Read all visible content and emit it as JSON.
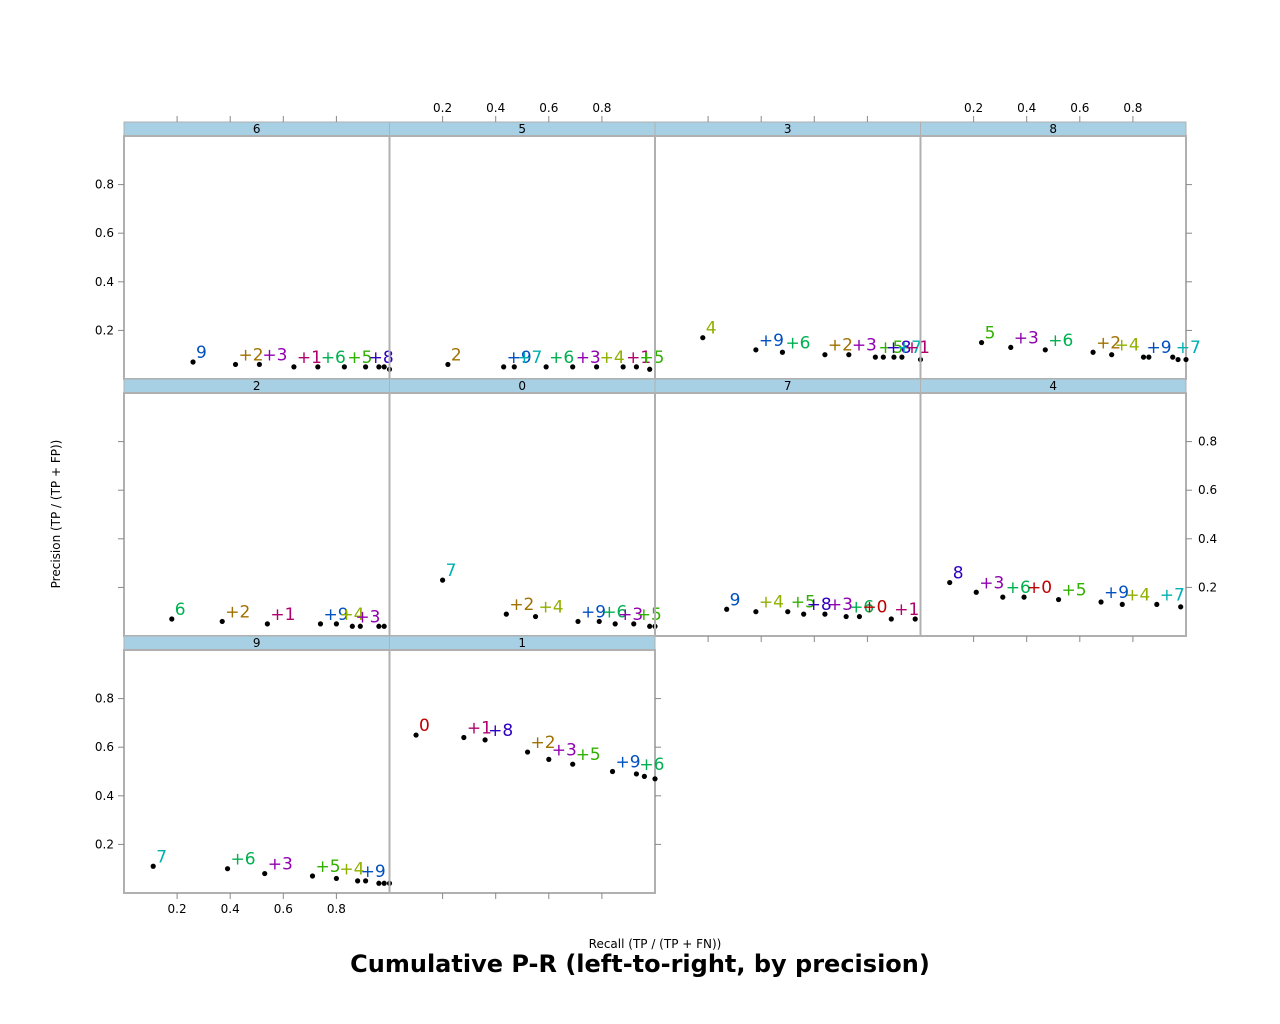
{
  "chart_data": {
    "type": "scatter",
    "title": "Cumulative P-R (left-to-right, by precision)",
    "xlabel": "Recall (TP / (TP + FN))",
    "ylabel": "Precision (TP / (TP + FP))",
    "xlim": [
      0.0,
      1.0
    ],
    "ylim": [
      0.0,
      1.0
    ],
    "x_ticks": [
      0.2,
      0.4,
      0.6,
      0.8
    ],
    "y_ticks": [
      0.2,
      0.4,
      0.6,
      0.8
    ],
    "label_colors": {
      "0": "#c00000",
      "1": "#b0006e",
      "2": "#a07000",
      "3": "#9000b0",
      "4": "#90b000",
      "5": "#30b000",
      "6": "#00b050",
      "7": "#00b0b0",
      "8": "#3000c0",
      "9": "#0050c0"
    },
    "panels": [
      {
        "strip": "6",
        "points": [
          {
            "x": 0.26,
            "y": 0.07,
            "label": "9"
          },
          {
            "x": 0.42,
            "y": 0.06,
            "label": "+2"
          },
          {
            "x": 0.51,
            "y": 0.06,
            "label": "+3"
          },
          {
            "x": 0.64,
            "y": 0.05,
            "label": "+1"
          },
          {
            "x": 0.73,
            "y": 0.05,
            "label": "+6"
          },
          {
            "x": 0.83,
            "y": 0.05,
            "label": "+5"
          },
          {
            "x": 0.91,
            "y": 0.05,
            "label": "+8"
          },
          {
            "x": 0.96,
            "y": 0.05,
            "label": ""
          },
          {
            "x": 0.98,
            "y": 0.05,
            "label": ""
          },
          {
            "x": 1.0,
            "y": 0.04,
            "label": ""
          }
        ]
      },
      {
        "strip": "5",
        "points": [
          {
            "x": 0.22,
            "y": 0.06,
            "label": "2"
          },
          {
            "x": 0.43,
            "y": 0.05,
            "label": "+9"
          },
          {
            "x": 0.47,
            "y": 0.05,
            "label": "+7"
          },
          {
            "x": 0.59,
            "y": 0.05,
            "label": "+6"
          },
          {
            "x": 0.69,
            "y": 0.05,
            "label": "+3"
          },
          {
            "x": 0.78,
            "y": 0.05,
            "label": "+4"
          },
          {
            "x": 0.88,
            "y": 0.05,
            "label": "+1"
          },
          {
            "x": 0.93,
            "y": 0.05,
            "label": "+5"
          },
          {
            "x": 0.98,
            "y": 0.04,
            "label": ""
          }
        ]
      },
      {
        "strip": "3",
        "points": [
          {
            "x": 0.18,
            "y": 0.17,
            "label": "4"
          },
          {
            "x": 0.38,
            "y": 0.12,
            "label": "+9"
          },
          {
            "x": 0.48,
            "y": 0.11,
            "label": "+6"
          },
          {
            "x": 0.64,
            "y": 0.1,
            "label": "+2"
          },
          {
            "x": 0.73,
            "y": 0.1,
            "label": "+3"
          },
          {
            "x": 0.83,
            "y": 0.09,
            "label": "+5"
          },
          {
            "x": 0.86,
            "y": 0.09,
            "label": "+8"
          },
          {
            "x": 0.9,
            "y": 0.09,
            "label": "+7"
          },
          {
            "x": 0.93,
            "y": 0.09,
            "label": "+1"
          },
          {
            "x": 1.0,
            "y": 0.08,
            "label": ""
          }
        ]
      },
      {
        "strip": "8",
        "points": [
          {
            "x": 0.23,
            "y": 0.15,
            "label": "5"
          },
          {
            "x": 0.34,
            "y": 0.13,
            "label": "+3"
          },
          {
            "x": 0.47,
            "y": 0.12,
            "label": "+6"
          },
          {
            "x": 0.65,
            "y": 0.11,
            "label": "+2"
          },
          {
            "x": 0.72,
            "y": 0.1,
            "label": "+4"
          },
          {
            "x": 0.84,
            "y": 0.09,
            "label": "+9"
          },
          {
            "x": 0.86,
            "y": 0.09,
            "label": ""
          },
          {
            "x": 0.95,
            "y": 0.09,
            "label": "+7"
          },
          {
            "x": 0.97,
            "y": 0.08,
            "label": ""
          },
          {
            "x": 1.0,
            "y": 0.08,
            "label": ""
          }
        ]
      },
      {
        "strip": "2",
        "points": [
          {
            "x": 0.18,
            "y": 0.07,
            "label": "6"
          },
          {
            "x": 0.37,
            "y": 0.06,
            "label": "+2"
          },
          {
            "x": 0.54,
            "y": 0.05,
            "label": "+1"
          },
          {
            "x": 0.74,
            "y": 0.05,
            "label": "+9"
          },
          {
            "x": 0.8,
            "y": 0.05,
            "label": "+4"
          },
          {
            "x": 0.86,
            "y": 0.04,
            "label": "+3"
          },
          {
            "x": 0.89,
            "y": 0.04,
            "label": ""
          },
          {
            "x": 0.96,
            "y": 0.04,
            "label": ""
          },
          {
            "x": 0.98,
            "y": 0.04,
            "label": ""
          }
        ]
      },
      {
        "strip": "0",
        "points": [
          {
            "x": 0.2,
            "y": 0.23,
            "label": "7"
          },
          {
            "x": 0.44,
            "y": 0.09,
            "label": "+2"
          },
          {
            "x": 0.55,
            "y": 0.08,
            "label": "+4"
          },
          {
            "x": 0.71,
            "y": 0.06,
            "label": "+9"
          },
          {
            "x": 0.79,
            "y": 0.06,
            "label": "+6"
          },
          {
            "x": 0.85,
            "y": 0.05,
            "label": "+3"
          },
          {
            "x": 0.92,
            "y": 0.05,
            "label": "+5"
          },
          {
            "x": 0.98,
            "y": 0.04,
            "label": ""
          },
          {
            "x": 1.0,
            "y": 0.04,
            "label": ""
          }
        ]
      },
      {
        "strip": "7",
        "points": [
          {
            "x": 0.27,
            "y": 0.11,
            "label": "9"
          },
          {
            "x": 0.38,
            "y": 0.1,
            "label": "+4"
          },
          {
            "x": 0.5,
            "y": 0.1,
            "label": "+5"
          },
          {
            "x": 0.56,
            "y": 0.09,
            "label": "+8"
          },
          {
            "x": 0.64,
            "y": 0.09,
            "label": "+3"
          },
          {
            "x": 0.72,
            "y": 0.08,
            "label": "+6"
          },
          {
            "x": 0.77,
            "y": 0.08,
            "label": "+0"
          },
          {
            "x": 0.89,
            "y": 0.07,
            "label": "+1"
          },
          {
            "x": 0.98,
            "y": 0.07,
            "label": ""
          }
        ]
      },
      {
        "strip": "4",
        "points": [
          {
            "x": 0.11,
            "y": 0.22,
            "label": "8"
          },
          {
            "x": 0.21,
            "y": 0.18,
            "label": "+3"
          },
          {
            "x": 0.31,
            "y": 0.16,
            "label": "+6"
          },
          {
            "x": 0.39,
            "y": 0.16,
            "label": "+0"
          },
          {
            "x": 0.52,
            "y": 0.15,
            "label": "+5"
          },
          {
            "x": 0.68,
            "y": 0.14,
            "label": "+9"
          },
          {
            "x": 0.76,
            "y": 0.13,
            "label": "+4"
          },
          {
            "x": 0.89,
            "y": 0.13,
            "label": "+7"
          },
          {
            "x": 0.98,
            "y": 0.12,
            "label": ""
          }
        ]
      },
      {
        "strip": "9",
        "points": [
          {
            "x": 0.11,
            "y": 0.11,
            "label": "7"
          },
          {
            "x": 0.39,
            "y": 0.1,
            "label": "+6"
          },
          {
            "x": 0.53,
            "y": 0.08,
            "label": "+3"
          },
          {
            "x": 0.71,
            "y": 0.07,
            "label": "+5"
          },
          {
            "x": 0.8,
            "y": 0.06,
            "label": "+4"
          },
          {
            "x": 0.88,
            "y": 0.05,
            "label": "+9"
          },
          {
            "x": 0.91,
            "y": 0.05,
            "label": ""
          },
          {
            "x": 0.96,
            "y": 0.04,
            "label": ""
          },
          {
            "x": 0.98,
            "y": 0.04,
            "label": ""
          },
          {
            "x": 1.0,
            "y": 0.04,
            "label": ""
          }
        ]
      },
      {
        "strip": "1",
        "points": [
          {
            "x": 0.1,
            "y": 0.65,
            "label": "0"
          },
          {
            "x": 0.28,
            "y": 0.64,
            "label": "+1"
          },
          {
            "x": 0.36,
            "y": 0.63,
            "label": "+8"
          },
          {
            "x": 0.52,
            "y": 0.58,
            "label": "+2"
          },
          {
            "x": 0.6,
            "y": 0.55,
            "label": "+3"
          },
          {
            "x": 0.69,
            "y": 0.53,
            "label": "+5"
          },
          {
            "x": 0.84,
            "y": 0.5,
            "label": "+9"
          },
          {
            "x": 0.93,
            "y": 0.49,
            "label": "+6"
          },
          {
            "x": 0.96,
            "y": 0.48,
            "label": ""
          },
          {
            "x": 1.0,
            "y": 0.47,
            "label": ""
          }
        ]
      }
    ]
  }
}
